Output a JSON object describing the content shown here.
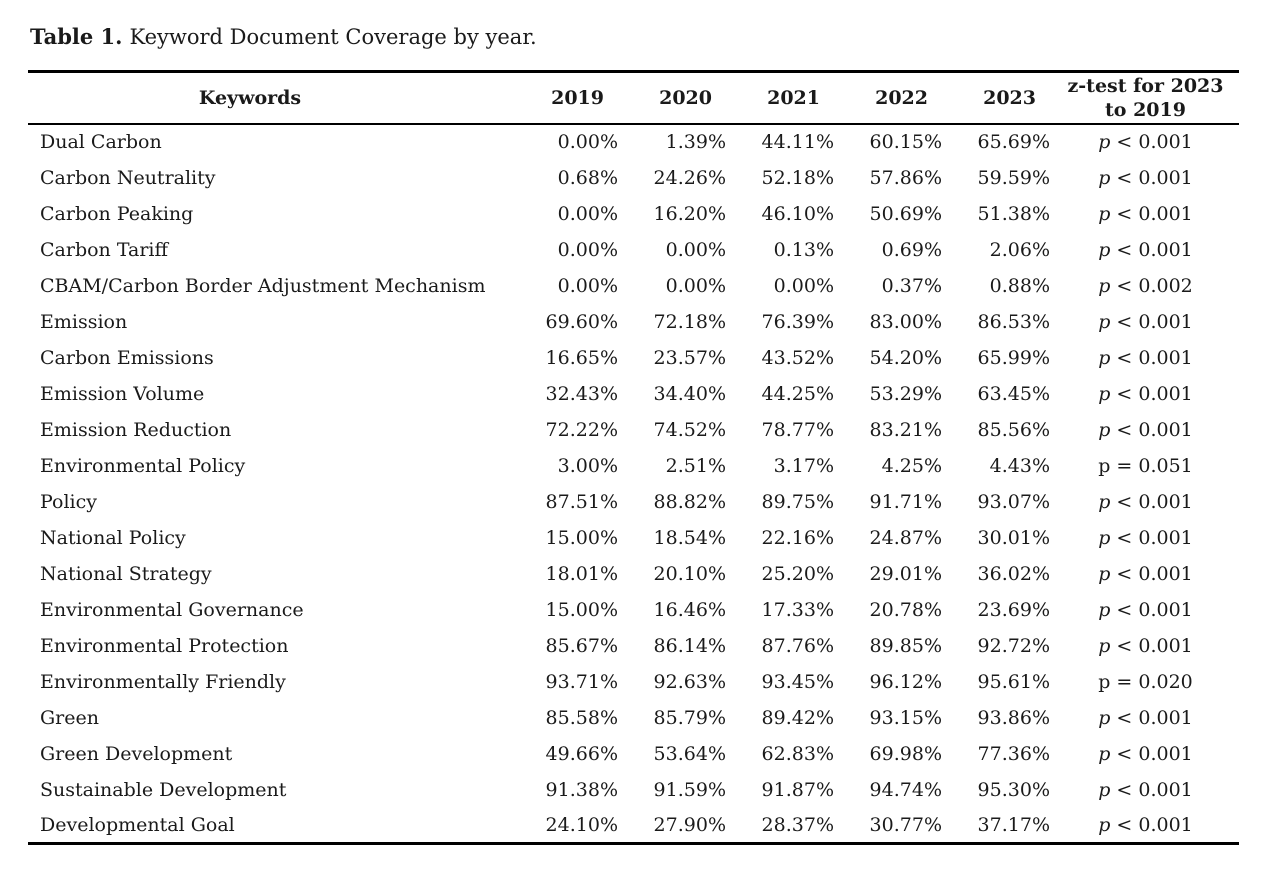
{
  "caption": {
    "label": "Table 1.",
    "text": "Keyword Document Coverage by year."
  },
  "table": {
    "keywords_header": "Keywords",
    "year_headers": [
      "2019",
      "2020",
      "2021",
      "2022",
      "2023"
    ],
    "ztest_header": {
      "line1": "z-test for 2023",
      "line2": "to 2019"
    },
    "rows": [
      {
        "keyword": "Dual Carbon",
        "values": [
          "0.00%",
          "1.39%",
          "44.11%",
          "60.15%",
          "65.69%"
        ],
        "ztest": {
          "p": "p",
          "italic": true,
          "rest": "< 0.001"
        }
      },
      {
        "keyword": "Carbon Neutrality",
        "values": [
          "0.68%",
          "24.26%",
          "52.18%",
          "57.86%",
          "59.59%"
        ],
        "ztest": {
          "p": "p",
          "italic": true,
          "rest": "< 0.001"
        }
      },
      {
        "keyword": "Carbon Peaking",
        "values": [
          "0.00%",
          "16.20%",
          "46.10%",
          "50.69%",
          "51.38%"
        ],
        "ztest": {
          "p": "p",
          "italic": true,
          "rest": "< 0.001"
        }
      },
      {
        "keyword": "Carbon Tariff",
        "values": [
          "0.00%",
          "0.00%",
          "0.13%",
          "0.69%",
          "2.06%"
        ],
        "ztest": {
          "p": "p",
          "italic": true,
          "rest": "< 0.001"
        }
      },
      {
        "keyword": "CBAM/Carbon Border Adjustment Mechanism",
        "values": [
          "0.00%",
          "0.00%",
          "0.00%",
          "0.37%",
          "0.88%"
        ],
        "ztest": {
          "p": "p",
          "italic": true,
          "rest": "< 0.002"
        }
      },
      {
        "keyword": "Emission",
        "values": [
          "69.60%",
          "72.18%",
          "76.39%",
          "83.00%",
          "86.53%"
        ],
        "ztest": {
          "p": "p",
          "italic": true,
          "rest": "< 0.001"
        }
      },
      {
        "keyword": "Carbon Emissions",
        "values": [
          "16.65%",
          "23.57%",
          "43.52%",
          "54.20%",
          "65.99%"
        ],
        "ztest": {
          "p": "p",
          "italic": true,
          "rest": "< 0.001"
        }
      },
      {
        "keyword": "Emission Volume",
        "values": [
          "32.43%",
          "34.40%",
          "44.25%",
          "53.29%",
          "63.45%"
        ],
        "ztest": {
          "p": "p",
          "italic": true,
          "rest": "< 0.001"
        }
      },
      {
        "keyword": "Emission Reduction",
        "values": [
          "72.22%",
          "74.52%",
          "78.77%",
          "83.21%",
          "85.56%"
        ],
        "ztest": {
          "p": "p",
          "italic": true,
          "rest": "< 0.001"
        }
      },
      {
        "keyword": "Environmental Policy",
        "values": [
          "3.00%",
          "2.51%",
          "3.17%",
          "4.25%",
          "4.43%"
        ],
        "ztest": {
          "p": "p",
          "italic": false,
          "rest": "= 0.051"
        }
      },
      {
        "keyword": "Policy",
        "values": [
          "87.51%",
          "88.82%",
          "89.75%",
          "91.71%",
          "93.07%"
        ],
        "ztest": {
          "p": "p",
          "italic": true,
          "rest": "< 0.001"
        }
      },
      {
        "keyword": "National Policy",
        "values": [
          "15.00%",
          "18.54%",
          "22.16%",
          "24.87%",
          "30.01%"
        ],
        "ztest": {
          "p": "p",
          "italic": true,
          "rest": "< 0.001"
        }
      },
      {
        "keyword": "National Strategy",
        "values": [
          "18.01%",
          "20.10%",
          "25.20%",
          "29.01%",
          "36.02%"
        ],
        "ztest": {
          "p": "p",
          "italic": true,
          "rest": "< 0.001"
        }
      },
      {
        "keyword": "Environmental Governance",
        "values": [
          "15.00%",
          "16.46%",
          "17.33%",
          "20.78%",
          "23.69%"
        ],
        "ztest": {
          "p": "p",
          "italic": true,
          "rest": "< 0.001"
        }
      },
      {
        "keyword": "Environmental Protection",
        "values": [
          "85.67%",
          "86.14%",
          "87.76%",
          "89.85%",
          "92.72%"
        ],
        "ztest": {
          "p": "p",
          "italic": true,
          "rest": "< 0.001"
        }
      },
      {
        "keyword": "Environmentally Friendly",
        "values": [
          "93.71%",
          "92.63%",
          "93.45%",
          "96.12%",
          "95.61%"
        ],
        "ztest": {
          "p": "p",
          "italic": false,
          "rest": "= 0.020"
        }
      },
      {
        "keyword": "Green",
        "values": [
          "85.58%",
          "85.79%",
          "89.42%",
          "93.15%",
          "93.86%"
        ],
        "ztest": {
          "p": "p",
          "italic": true,
          "rest": "< 0.001"
        }
      },
      {
        "keyword": "Green Development",
        "values": [
          "49.66%",
          "53.64%",
          "62.83%",
          "69.98%",
          "77.36%"
        ],
        "ztest": {
          "p": "p",
          "italic": true,
          "rest": "< 0.001"
        }
      },
      {
        "keyword": "Sustainable Development",
        "values": [
          "91.38%",
          "91.59%",
          "91.87%",
          "94.74%",
          "95.30%"
        ],
        "ztest": {
          "p": "p",
          "italic": true,
          "rest": "< 0.001"
        }
      },
      {
        "keyword": "Developmental Goal",
        "values": [
          "24.10%",
          "27.90%",
          "28.37%",
          "30.77%",
          "37.17%"
        ],
        "ztest": {
          "p": "p",
          "italic": true,
          "rest": "< 0.001"
        }
      }
    ]
  },
  "colors": {
    "text": "#1a1a1a",
    "rule": "#000000",
    "background": "#ffffff"
  }
}
